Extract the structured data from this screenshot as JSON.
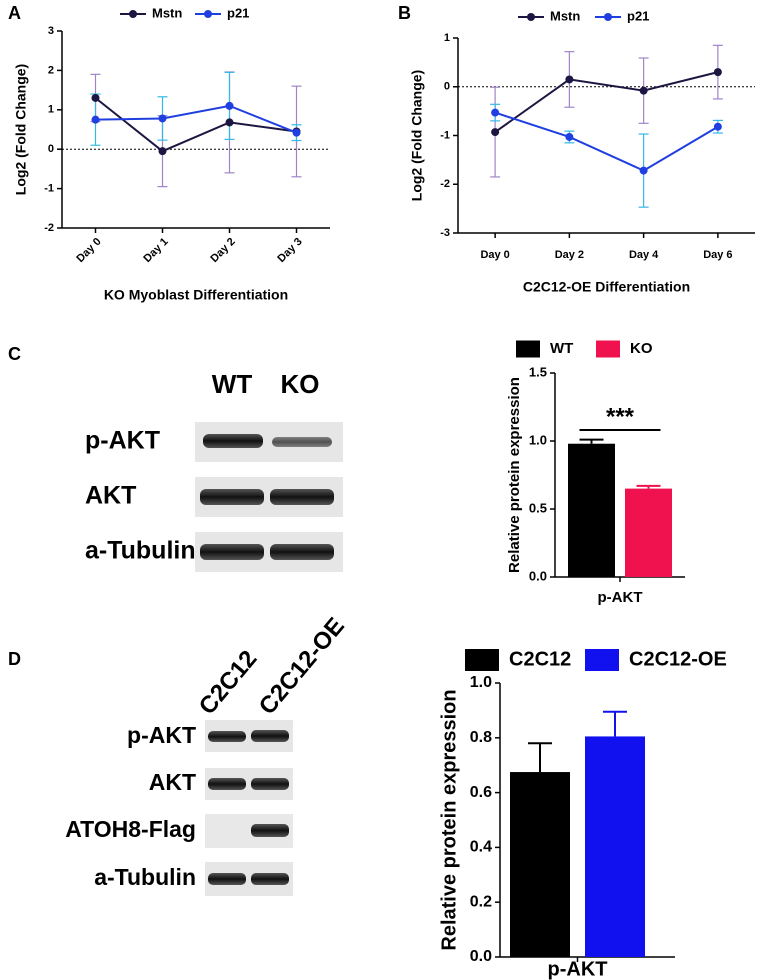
{
  "panels": [
    "A",
    "B",
    "C",
    "D"
  ],
  "blots": [
    {
      "lanes": [
        "WT",
        "KO"
      ],
      "rows": [
        "p-AKT",
        "AKT",
        "a-Tubulin"
      ]
    },
    {
      "lanes": [
        "C2C12",
        "C2C12-OE"
      ],
      "rows": [
        "p-AKT",
        "AKT",
        "ATOH8-Flag",
        "a-Tubulin"
      ]
    }
  ],
  "chart_data": [
    {
      "type": "line",
      "x_label": "KO Myoblast Differentiation",
      "y_label": "Log2 (Fold Change)",
      "categories": [
        "Day 0",
        "Day 1",
        "Day 2",
        "Day 3"
      ],
      "series": [
        {
          "name": "Mstn",
          "color": "#1c1642",
          "error_color": "#a084c8",
          "values": [
            1.3,
            -0.05,
            0.68,
            0.45
          ],
          "errors": [
            0.6,
            0.9,
            1.28,
            1.15
          ]
        },
        {
          "name": "p21",
          "color": "#1f3fe0",
          "error_color": "#35b8e6",
          "values": [
            0.75,
            0.78,
            1.1,
            0.42
          ],
          "errors": [
            0.65,
            0.55,
            0.85,
            0.2
          ]
        }
      ],
      "ylim": [
        -2,
        3
      ],
      "yticks": [
        -2,
        -1,
        0,
        1,
        2,
        3
      ],
      "reference_line": 0,
      "rotate_x_labels": true
    },
    {
      "type": "line",
      "x_label": "C2C12-OE Differentiation",
      "y_label": "Log2 (Fold Change)",
      "categories": [
        "Day 0",
        "Day 2",
        "Day 4",
        "Day 6"
      ],
      "series": [
        {
          "name": "Mstn",
          "color": "#1c1642",
          "error_color": "#a084c8",
          "values": [
            -0.93,
            0.15,
            -0.08,
            0.3
          ],
          "errors": [
            0.92,
            0.57,
            0.67,
            0.55
          ]
        },
        {
          "name": "p21",
          "color": "#1f3fe0",
          "error_color": "#35b8e6",
          "values": [
            -0.53,
            -1.03,
            -1.72,
            -0.82
          ],
          "errors": [
            0.17,
            0.12,
            0.75,
            0.13
          ]
        }
      ],
      "ylim": [
        -3,
        1
      ],
      "yticks": [
        -3,
        -2,
        -1,
        0,
        1
      ],
      "reference_line": 0,
      "rotate_x_labels": false
    },
    {
      "type": "bar",
      "y_label": "Relative protein expression",
      "categories": [
        "p-AKT"
      ],
      "series": [
        {
          "name": "WT",
          "color": "#000000",
          "values": [
            0.98
          ],
          "errors": [
            0.03
          ]
        },
        {
          "name": "KO",
          "color": "#f0114f",
          "values": [
            0.65
          ],
          "errors": [
            0.02
          ]
        }
      ],
      "ylim": [
        0,
        1.5
      ],
      "yticks": [
        {
          "value": 0,
          "label": "0.0"
        },
        0.5,
        {
          "value": 1,
          "label": "1.0"
        },
        1.5
      ],
      "annotation": "***"
    },
    {
      "type": "bar",
      "y_label": "Relative protein expression",
      "categories": [
        "p-AKT"
      ],
      "series": [
        {
          "name": "C2C12",
          "color": "#000000",
          "values": [
            0.675
          ],
          "errors": [
            0.105
          ]
        },
        {
          "name": "C2C12-OE",
          "color": "#1111f0",
          "values": [
            0.805
          ],
          "errors": [
            0.09
          ]
        }
      ],
      "ylim": [
        0,
        1
      ],
      "yticks": [
        {
          "value": 0,
          "label": "0.0"
        },
        0.2,
        0.4,
        0.6,
        0.8,
        {
          "value": 1,
          "label": "1.0"
        }
      ]
    }
  ]
}
